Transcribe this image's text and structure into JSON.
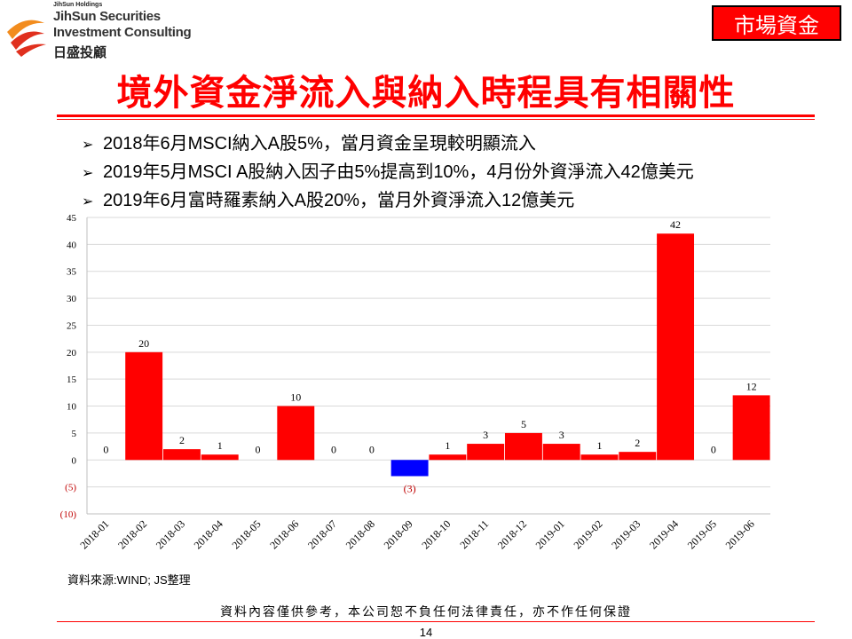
{
  "brand": {
    "holdings": "JihSun Holdings",
    "line1": "JihSun Securities",
    "line2": "Investment Consulting",
    "chinese": "日盛投顧",
    "logo_colors": [
      "#e0301e",
      "#f28c1e"
    ]
  },
  "tag": "市場資金",
  "title": "境外資金淨流入與納入時程具有相關性",
  "bullets": [
    "2018年6月MSCI納入A股5%，當月資金呈現較明顯流入",
    "2019年5月MSCI A股納入因子由5%提高到10%，4月份外資淨流入42億美元",
    "2019年6月富時羅素納入A股20%，當月外資淨流入12億美元"
  ],
  "chart_data": {
    "type": "bar",
    "categories": [
      "2018-01",
      "2018-02",
      "2018-03",
      "2018-04",
      "2018-05",
      "2018-06",
      "2018-07",
      "2018-08",
      "2018-09",
      "2018-10",
      "2018-11",
      "2018-12",
      "2019-01",
      "2019-02",
      "2019-03",
      "2019-04",
      "2019-05",
      "2019-06"
    ],
    "values": [
      0,
      20,
      2,
      1,
      0,
      10,
      0,
      0,
      -3,
      1,
      3,
      5,
      3,
      1,
      1.5,
      42,
      0,
      12
    ],
    "data_labels": [
      "0",
      "20",
      "2",
      "1",
      "0",
      "10",
      "0",
      "0",
      "(3)",
      "1",
      "3",
      "5",
      "3",
      "1",
      "2",
      "42",
      "0",
      "12"
    ],
    "y_ticks": [
      45,
      40,
      35,
      30,
      25,
      20,
      15,
      10,
      5,
      0,
      -5,
      -10
    ],
    "y_tick_labels": [
      "45",
      "40",
      "35",
      "30",
      "25",
      "20",
      "15",
      "10",
      "5",
      "0",
      "(5)",
      "(10)"
    ],
    "ylim": [
      -10,
      45
    ],
    "grid": true,
    "positive_color": "#ff0000",
    "negative_color": "#0000ff",
    "title": "",
    "xlabel": "",
    "ylabel": ""
  },
  "source": "資料來源:WIND; JS整理",
  "disclaimer": "資料內容僅供參考，本公司恕不負任何法律責任，亦不作任何保證",
  "page_number": "14"
}
